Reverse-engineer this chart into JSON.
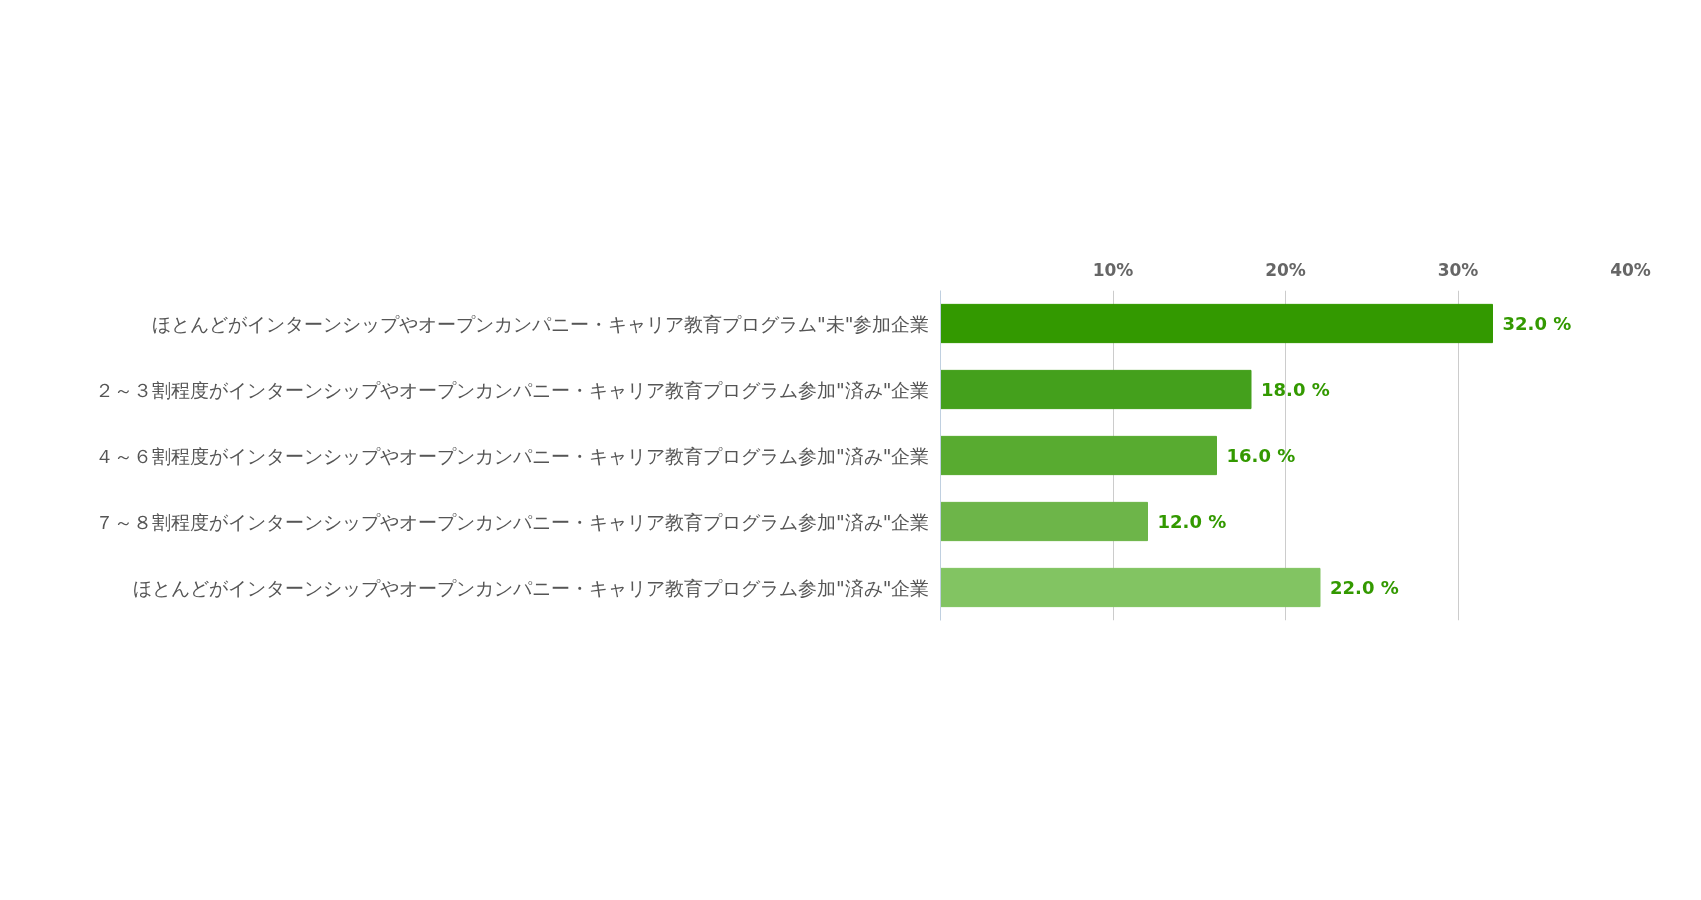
{
  "chart_data": {
    "type": "bar",
    "orientation": "horizontal",
    "categories": [
      "ほとんどがインターンシップやオープンカンパニー・キャリア教育プログラム\"未\"参加企業",
      "２～３割程度がインターンシップやオープンカンパニー・キャリア教育プログラム参加\"済み\"企業",
      "４～６割程度がインターンシップやオープンカンパニー・キャリア教育プログラム参加\"済み\"企業",
      "７～８割程度がインターンシップやオープンカンパニー・キャリア教育プログラム参加\"済み\"企業",
      "ほとんどがインターンシップやオープンカンパニー・キャリア教育プログラム参加\"済み\"企業"
    ],
    "values": [
      32.0,
      18.0,
      16.0,
      12.0,
      22.0
    ],
    "colors": [
      "#339900",
      "#44a01c",
      "#58ab30",
      "#6db549",
      "#82c462"
    ],
    "value_labels": [
      "32.0 %",
      "18.0 %",
      "16.0 %",
      "12.0 %",
      "22.0 %"
    ],
    "xlim": [
      0,
      40
    ],
    "xticks": [
      {
        "value": 10,
        "label": "10%"
      },
      {
        "value": 20,
        "label": "20%"
      },
      {
        "value": 30,
        "label": "30%"
      },
      {
        "value": 40,
        "label": "40%"
      }
    ],
    "grid": "x"
  }
}
